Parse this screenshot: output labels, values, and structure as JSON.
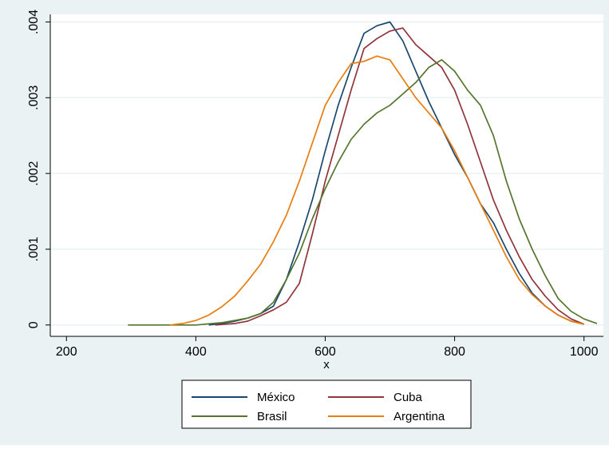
{
  "chart_data": {
    "type": "line",
    "title": "",
    "xlabel": "x",
    "ylabel": "",
    "xlim": [
      175,
      1030
    ],
    "ylim": [
      -0.00015,
      0.0041
    ],
    "x_ticks": [
      200,
      400,
      600,
      800,
      1000
    ],
    "x_tick_labels": [
      "200",
      "400",
      "600",
      "800",
      "1000"
    ],
    "y_ticks": [
      0,
      0.001,
      0.002,
      0.003,
      0.004
    ],
    "y_tick_labels": [
      "0",
      ".001",
      ".002",
      ".003",
      ".004"
    ],
    "grid": "horizontal",
    "legend_position": "bottom",
    "series": [
      {
        "name": "México",
        "color": "#1a476f",
        "x": [
          420,
          440,
          460,
          480,
          500,
          520,
          540,
          560,
          580,
          600,
          620,
          640,
          660,
          680,
          700,
          720,
          740,
          760,
          780,
          800,
          820,
          840,
          860,
          880,
          900,
          920,
          940,
          960,
          980,
          1000
        ],
        "y": [
          0,
          2e-05,
          5e-05,
          9e-05,
          0.00015,
          0.00025,
          0.0006,
          0.0011,
          0.00165,
          0.0023,
          0.0029,
          0.0034,
          0.00385,
          0.00395,
          0.004,
          0.00375,
          0.00335,
          0.00295,
          0.0026,
          0.00225,
          0.00195,
          0.0016,
          0.00135,
          0.001,
          0.00068,
          0.00042,
          0.00025,
          0.00013,
          5e-05,
          1e-05
        ]
      },
      {
        "name": "Cuba",
        "color": "#90353b",
        "x": [
          430,
          460,
          480,
          500,
          520,
          540,
          560,
          580,
          600,
          620,
          640,
          660,
          680,
          700,
          720,
          740,
          760,
          780,
          800,
          820,
          840,
          860,
          880,
          900,
          920,
          940,
          960,
          980,
          1000
        ],
        "y": [
          0,
          2e-05,
          5e-05,
          0.00012,
          0.0002,
          0.0003,
          0.00055,
          0.0012,
          0.0019,
          0.0025,
          0.0031,
          0.00365,
          0.00378,
          0.00388,
          0.00392,
          0.0037,
          0.00355,
          0.0034,
          0.0031,
          0.00265,
          0.00215,
          0.00165,
          0.00125,
          0.0009,
          0.0006,
          0.00038,
          0.0002,
          8e-05,
          1e-05
        ]
      },
      {
        "name": "Brasil",
        "color": "#55752f",
        "x": [
          295,
          350,
          400,
          440,
          480,
          500,
          520,
          540,
          560,
          580,
          600,
          620,
          640,
          660,
          680,
          700,
          720,
          740,
          760,
          780,
          800,
          820,
          840,
          860,
          880,
          900,
          920,
          940,
          960,
          980,
          1000,
          1020
        ],
        "y": [
          0,
          0,
          0,
          3e-05,
          9e-05,
          0.00015,
          0.0003,
          0.0006,
          0.00095,
          0.0014,
          0.0018,
          0.00215,
          0.00245,
          0.00265,
          0.0028,
          0.0029,
          0.00305,
          0.0032,
          0.0034,
          0.0035,
          0.00335,
          0.0031,
          0.0029,
          0.0025,
          0.0019,
          0.0014,
          0.001,
          0.00065,
          0.00035,
          0.00018,
          8e-05,
          2e-05
        ]
      },
      {
        "name": "Argentina",
        "color": "#e87d0f",
        "x": [
          360,
          380,
          400,
          420,
          440,
          460,
          480,
          500,
          520,
          540,
          560,
          580,
          600,
          620,
          640,
          660,
          680,
          700,
          720,
          740,
          760,
          780,
          800,
          820,
          840,
          860,
          880,
          900,
          920,
          940,
          960,
          980,
          1000
        ],
        "y": [
          0,
          2e-05,
          6e-05,
          0.00013,
          0.00024,
          0.00038,
          0.00058,
          0.0008,
          0.0011,
          0.00145,
          0.0019,
          0.0024,
          0.0029,
          0.0032,
          0.00345,
          0.00348,
          0.00355,
          0.0035,
          0.00325,
          0.003,
          0.0028,
          0.0026,
          0.0023,
          0.00195,
          0.0016,
          0.00125,
          0.0009,
          0.0006,
          0.0004,
          0.00025,
          0.00013,
          5e-05,
          1e-05
        ]
      }
    ]
  }
}
